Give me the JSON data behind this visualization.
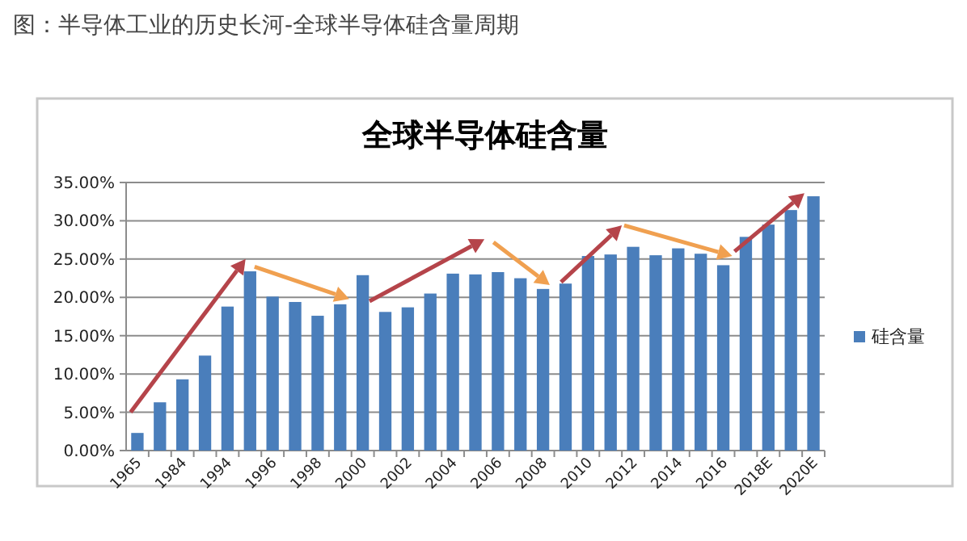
{
  "chart_data": {
    "type": "bar",
    "title": "全球半导体硅含量",
    "annotations": [
      "图：半导体工业的历史长河-全球半导体硅含量周期"
    ],
    "categories": [
      "1965",
      null,
      "1984",
      null,
      "1994",
      null,
      "1996",
      null,
      "1998",
      null,
      "2000",
      null,
      "2002",
      null,
      "2004",
      null,
      "2006",
      null,
      "2008",
      null,
      "2010",
      null,
      "2012",
      null,
      "2014",
      null,
      "2016",
      null,
      "2018E",
      null,
      "2020E"
    ],
    "series": [
      {
        "name": "硅含量",
        "color": "#4a7ebb",
        "values": [
          2.3,
          6.3,
          9.3,
          12.4,
          18.8,
          23.4,
          20.1,
          19.4,
          17.6,
          19.1,
          22.9,
          18.1,
          18.7,
          20.5,
          23.1,
          23.0,
          23.3,
          22.5,
          21.1,
          21.8,
          25.4,
          25.6,
          26.6,
          25.5,
          26.4,
          25.7,
          24.2,
          27.9,
          29.5,
          31.4,
          33.2
        ]
      }
    ],
    "ylim": [
      0,
      35
    ],
    "yticks": [
      {
        "value": 0,
        "label": "0.00%"
      },
      {
        "value": 5,
        "label": "5.00%"
      },
      {
        "value": 10,
        "label": "10.00%"
      },
      {
        "value": 15,
        "label": "15.00%"
      },
      {
        "value": 20,
        "label": "20.00%"
      },
      {
        "value": 25,
        "label": "25.00%"
      },
      {
        "value": 30,
        "label": "30.00%"
      },
      {
        "value": 35,
        "label": "35.00%"
      }
    ],
    "grid": "y",
    "legend": "right"
  }
}
